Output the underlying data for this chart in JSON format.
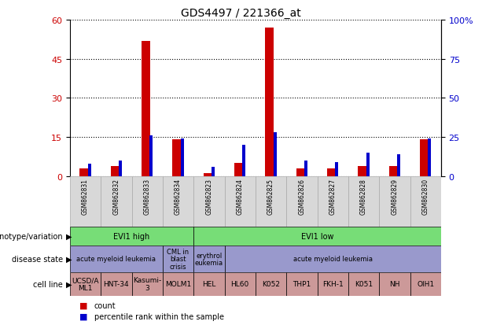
{
  "title": "GDS4497 / 221366_at",
  "samples": [
    "GSM862831",
    "GSM862832",
    "GSM862833",
    "GSM862834",
    "GSM862823",
    "GSM862824",
    "GSM862825",
    "GSM862826",
    "GSM862827",
    "GSM862828",
    "GSM862829",
    "GSM862830"
  ],
  "count_values": [
    3,
    4,
    52,
    14,
    1,
    5,
    57,
    3,
    3,
    4,
    4,
    14
  ],
  "percentile_values": [
    8,
    10,
    26,
    24,
    6,
    20,
    28,
    10,
    9,
    15,
    14,
    24
  ],
  "ylim_left": [
    0,
    60
  ],
  "ylim_right": [
    0,
    100
  ],
  "yticks_left": [
    0,
    15,
    30,
    45,
    60
  ],
  "yticks_right": [
    0,
    25,
    50,
    75,
    100
  ],
  "bar_color": "#CC0000",
  "blue_color": "#0000CC",
  "genotype_variation": [
    {
      "label": "EVI1 high",
      "start": 0,
      "end": 4,
      "color": "#77DD77"
    },
    {
      "label": "EVI1 low",
      "start": 4,
      "end": 12,
      "color": "#77DD77"
    }
  ],
  "disease_state": [
    {
      "label": "acute myeloid leukemia",
      "start": 0,
      "end": 3,
      "color": "#9999CC"
    },
    {
      "label": "CML in\nblast\ncrisis",
      "start": 3,
      "end": 4,
      "color": "#9999CC"
    },
    {
      "label": "erythrol\neukemia",
      "start": 4,
      "end": 5,
      "color": "#9999CC"
    },
    {
      "label": "acute myeloid leukemia",
      "start": 5,
      "end": 12,
      "color": "#9999CC"
    }
  ],
  "cell_line": [
    {
      "label": "UCSD/A\nML1",
      "start": 0,
      "end": 1,
      "color": "#CC9999"
    },
    {
      "label": "HNT-34",
      "start": 1,
      "end": 2,
      "color": "#CC9999"
    },
    {
      "label": "Kasumi-\n3",
      "start": 2,
      "end": 3,
      "color": "#CC9999"
    },
    {
      "label": "MOLM1",
      "start": 3,
      "end": 4,
      "color": "#CC9999"
    },
    {
      "label": "HEL",
      "start": 4,
      "end": 5,
      "color": "#CC9999"
    },
    {
      "label": "HL60",
      "start": 5,
      "end": 6,
      "color": "#CC9999"
    },
    {
      "label": "K052",
      "start": 6,
      "end": 7,
      "color": "#CC9999"
    },
    {
      "label": "THP1",
      "start": 7,
      "end": 8,
      "color": "#CC9999"
    },
    {
      "label": "FKH-1",
      "start": 8,
      "end": 9,
      "color": "#CC9999"
    },
    {
      "label": "K051",
      "start": 9,
      "end": 10,
      "color": "#CC9999"
    },
    {
      "label": "NH",
      "start": 10,
      "end": 11,
      "color": "#CC9999"
    },
    {
      "label": "OIH1",
      "start": 11,
      "end": 12,
      "color": "#CC9999"
    }
  ],
  "background_color": "#FFFFFF",
  "tick_label_color_left": "#CC0000",
  "tick_label_color_right": "#0000CC",
  "sample_box_color": "#D8D8D8",
  "sample_box_edge": "#AAAAAA"
}
